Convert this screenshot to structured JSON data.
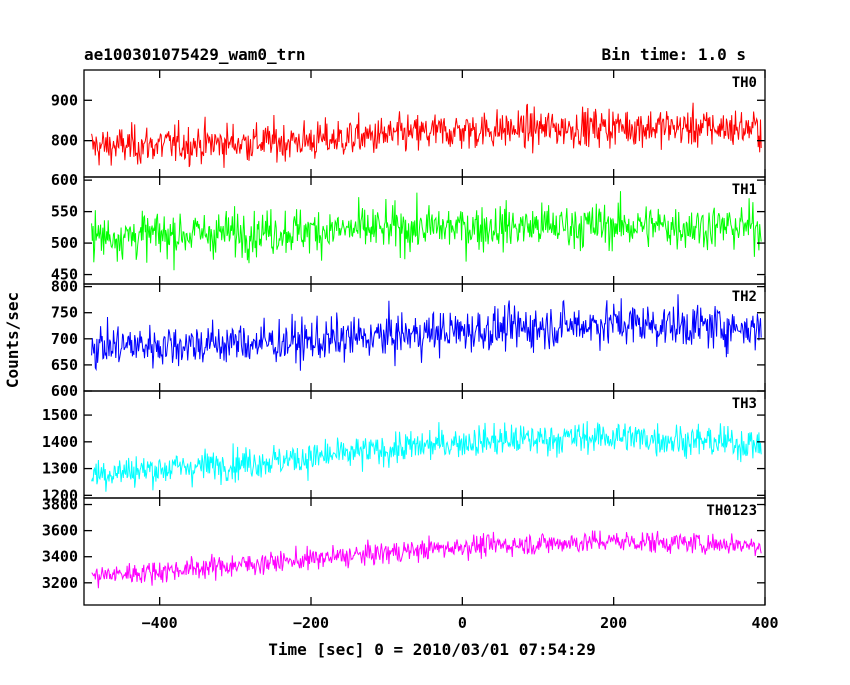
{
  "header": {
    "title": "ae100301075429_wam0_trn",
    "bin_time": "Bin time: 1.0 s"
  },
  "axes": {
    "xlabel": "Time [sec] 0 = 2010/03/01 07:54:29",
    "ylabel": "Counts/sec"
  },
  "chart_data": {
    "type": "line",
    "x_range": [
      -500,
      400
    ],
    "x_ticks": [
      -400,
      -200,
      0,
      200,
      400
    ],
    "x_tick_labels": [
      "−400",
      "−200",
      "0",
      "200",
      "400"
    ],
    "bin_time_s": 1.0,
    "panels": [
      {
        "label": "TH0",
        "color": "#ff0000",
        "ylim": [
          710,
          975
        ],
        "y_ticks": [
          800,
          900
        ],
        "y_tick_labels": [
          "800",
          "900"
        ],
        "trend": [
          {
            "x": -490,
            "y": 785
          },
          {
            "x": -200,
            "y": 800
          },
          {
            "x": 0,
            "y": 825
          },
          {
            "x": 200,
            "y": 835
          },
          {
            "x": 395,
            "y": 830
          }
        ],
        "spread": 40
      },
      {
        "label": "TH1",
        "color": "#00ff00",
        "ylim": [
          435,
          605
        ],
        "y_ticks": [
          450,
          500,
          550,
          600
        ],
        "y_tick_labels": [
          "450",
          "500",
          "550",
          "600"
        ],
        "trend": [
          {
            "x": -490,
            "y": 510
          },
          {
            "x": -200,
            "y": 520
          },
          {
            "x": 0,
            "y": 525
          },
          {
            "x": 200,
            "y": 528
          },
          {
            "x": 395,
            "y": 525
          }
        ],
        "spread": 30
      },
      {
        "label": "TH2",
        "color": "#0000ff",
        "ylim": [
          600,
          805
        ],
        "y_ticks": [
          600,
          650,
          700,
          750,
          800
        ],
        "y_tick_labels": [
          "600",
          "650",
          "700",
          "750",
          "800"
        ],
        "trend": [
          {
            "x": -490,
            "y": 685
          },
          {
            "x": -200,
            "y": 695
          },
          {
            "x": 0,
            "y": 715
          },
          {
            "x": 200,
            "y": 730
          },
          {
            "x": 395,
            "y": 720
          }
        ],
        "spread": 35
      },
      {
        "label": "TH3",
        "color": "#00ffff",
        "ylim": [
          1190,
          1590
        ],
        "y_ticks": [
          1200,
          1300,
          1400,
          1500
        ],
        "y_tick_labels": [
          "1200",
          "1300",
          "1400",
          "1500"
        ],
        "trend": [
          {
            "x": -490,
            "y": 1280
          },
          {
            "x": -200,
            "y": 1340
          },
          {
            "x": 0,
            "y": 1400
          },
          {
            "x": 200,
            "y": 1420
          },
          {
            "x": 395,
            "y": 1390
          }
        ],
        "spread": 50
      },
      {
        "label": "TH0123",
        "color": "#ff00ff",
        "ylim": [
          3030,
          3850
        ],
        "y_ticks": [
          3200,
          3400,
          3600,
          3800
        ],
        "y_tick_labels": [
          "3200",
          "3400",
          "3600",
          "3800"
        ],
        "trend": [
          {
            "x": -490,
            "y": 3250
          },
          {
            "x": -200,
            "y": 3380
          },
          {
            "x": 0,
            "y": 3480
          },
          {
            "x": 200,
            "y": 3520
          },
          {
            "x": 395,
            "y": 3490
          }
        ],
        "spread": 70
      }
    ]
  }
}
